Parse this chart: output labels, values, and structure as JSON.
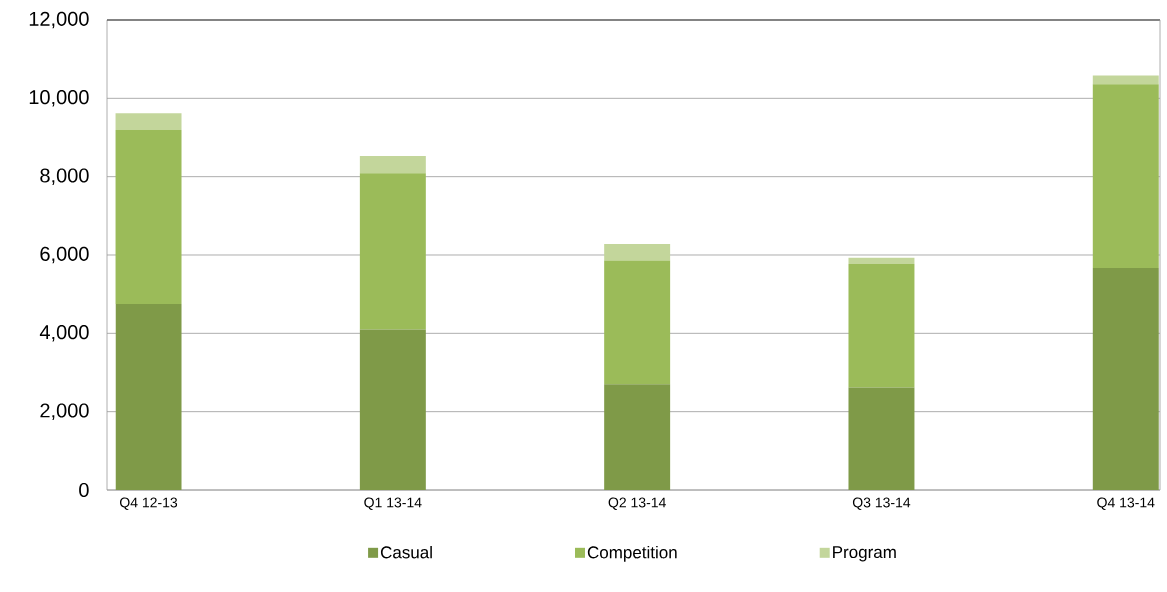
{
  "chart_data": {
    "type": "bar",
    "stacked": true,
    "categories": [
      "Q4 12-13",
      "Q1 13-14",
      "Q2 13-14",
      "Q3 13-14",
      "Q4 13-14"
    ],
    "series": [
      {
        "name": "Casual",
        "color": "#7f9a48",
        "values": [
          4750,
          4100,
          2700,
          2620,
          5670
        ]
      },
      {
        "name": "Competition",
        "color": "#9bbb59",
        "values": [
          4440,
          3990,
          3160,
          3150,
          4690
        ]
      },
      {
        "name": "Program",
        "color": "#c3d69b",
        "values": [
          430,
          440,
          420,
          160,
          220
        ]
      }
    ],
    "ylim": [
      0,
      12000
    ],
    "yticks": [
      0,
      {
        "value": 2000,
        "label": "2,000"
      },
      {
        "value": 4000,
        "label": "4,000"
      },
      {
        "value": 6000,
        "label": "6,000"
      },
      {
        "value": 8000,
        "label": "8,000"
      },
      {
        "value": 10000,
        "label": "10,000"
      },
      {
        "value": 12000,
        "label": "12,000"
      }
    ],
    "grid": "y",
    "legend": "bottom"
  }
}
